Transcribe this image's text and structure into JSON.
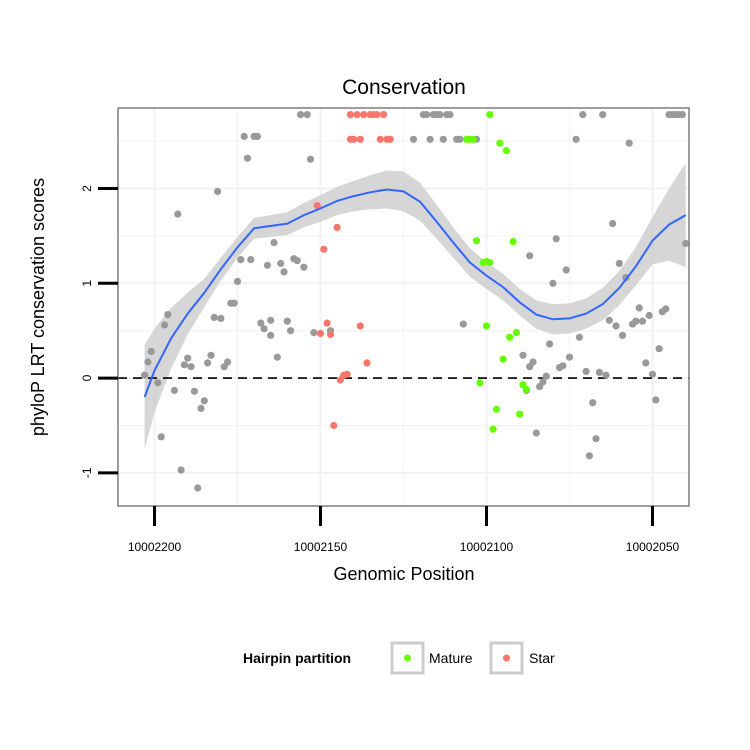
{
  "chart_data": {
    "type": "scatter",
    "title": "Conservation",
    "xlabel": "Genomic Position",
    "ylabel": "phyloP LRT conservation scores",
    "x_reversed": true,
    "xlim": [
      10002211,
      10002039
    ],
    "ylim": [
      -1.35,
      2.85
    ],
    "x_ticks": [
      10002200,
      10002150,
      10002100,
      10002050
    ],
    "x_tick_labels": [
      "10002200",
      "10002150",
      "10002100",
      "10002050"
    ],
    "y_ticks": [
      -1,
      0,
      1,
      2
    ],
    "y_tick_labels": [
      "-1",
      "0",
      "1",
      "2"
    ],
    "reference_line": {
      "y": 0,
      "style": "dashed",
      "color": "#000000"
    },
    "legend": {
      "title": "Hairpin partition",
      "position": "bottom",
      "entries": [
        {
          "label": "Mature",
          "color": "#66ff00"
        },
        {
          "label": "Star",
          "color": "#f8766d"
        }
      ]
    },
    "colors": {
      "other": "#999999",
      "mature": "#66ff00",
      "star": "#f8766d",
      "smooth": "#3366ff",
      "band": "#cccccc",
      "panel_border": "#7f7f7f",
      "grid": "#f2f2f2"
    },
    "series": [
      {
        "group": "other",
        "points": [
          [
            10002203,
            0.03
          ],
          [
            10002202,
            0.17
          ],
          [
            10002201,
            0.28
          ],
          [
            10002199,
            -0.05
          ],
          [
            10002198,
            -0.62
          ],
          [
            10002197,
            0.56
          ],
          [
            10002196,
            0.67
          ],
          [
            10002194,
            -0.13
          ],
          [
            10002193,
            1.73
          ],
          [
            10002192,
            -0.97
          ],
          [
            10002191,
            0.14
          ],
          [
            10002190,
            0.21
          ],
          [
            10002189,
            0.12
          ],
          [
            10002188,
            -0.14
          ],
          [
            10002187,
            -1.16
          ],
          [
            10002186,
            -0.32
          ],
          [
            10002185,
            -0.24
          ],
          [
            10002184,
            0.16
          ],
          [
            10002183,
            0.24
          ],
          [
            10002182,
            0.64
          ],
          [
            10002181,
            1.97
          ],
          [
            10002180,
            0.63
          ],
          [
            10002179,
            0.12
          ],
          [
            10002178,
            0.17
          ],
          [
            10002177,
            0.79
          ],
          [
            10002176,
            0.79
          ],
          [
            10002175,
            1.02
          ],
          [
            10002174,
            1.25
          ],
          [
            10002173,
            2.55
          ],
          [
            10002172,
            2.32
          ],
          [
            10002171,
            1.25
          ],
          [
            10002170,
            2.55
          ],
          [
            10002169,
            2.55
          ],
          [
            10002168,
            0.58
          ],
          [
            10002167,
            0.52
          ],
          [
            10002166,
            1.19
          ],
          [
            10002165,
            0.45
          ],
          [
            10002165,
            0.61
          ],
          [
            10002164,
            1.43
          ],
          [
            10002163,
            0.22
          ],
          [
            10002162,
            1.21
          ],
          [
            10002161,
            1.12
          ],
          [
            10002160,
            0.6
          ],
          [
            10002159,
            0.5
          ],
          [
            10002158,
            1.26
          ],
          [
            10002157,
            1.24
          ],
          [
            10002156,
            2.78
          ],
          [
            10002155,
            1.17
          ],
          [
            10002154,
            2.78
          ],
          [
            10002153,
            2.31
          ],
          [
            10002152,
            0.48
          ],
          [
            10002147,
            0.5
          ],
          [
            10002122,
            2.52
          ],
          [
            10002119,
            2.78
          ],
          [
            10002118,
            2.78
          ],
          [
            10002117,
            2.52
          ],
          [
            10002116,
            2.78
          ],
          [
            10002115,
            2.78
          ],
          [
            10002114,
            2.78
          ],
          [
            10002113,
            2.52
          ],
          [
            10002112,
            2.78
          ],
          [
            10002111,
            2.78
          ],
          [
            10002109,
            2.52
          ],
          [
            10002108,
            2.52
          ],
          [
            10002107,
            0.57
          ],
          [
            10002103,
            2.52
          ],
          [
            10002089,
            0.24
          ],
          [
            10002088,
            -0.13
          ],
          [
            10002087,
            1.29
          ],
          [
            10002087,
            0.12
          ],
          [
            10002086,
            0.17
          ],
          [
            10002085,
            -0.58
          ],
          [
            10002084,
            -0.09
          ],
          [
            10002083,
            -0.04
          ],
          [
            10002082,
            0.02
          ],
          [
            10002081,
            0.36
          ],
          [
            10002080,
            1.0
          ],
          [
            10002079,
            1.47
          ],
          [
            10002078,
            0.11
          ],
          [
            10002077,
            0.13
          ],
          [
            10002076,
            1.14
          ],
          [
            10002075,
            0.22
          ],
          [
            10002073,
            2.52
          ],
          [
            10002072,
            0.43
          ],
          [
            10002071,
            2.78
          ],
          [
            10002070,
            0.07
          ],
          [
            10002069,
            -0.82
          ],
          [
            10002068,
            -0.26
          ],
          [
            10002067,
            -0.64
          ],
          [
            10002066,
            0.06
          ],
          [
            10002065,
            2.78
          ],
          [
            10002064,
            0.03
          ],
          [
            10002063,
            0.61
          ],
          [
            10002062,
            1.63
          ],
          [
            10002061,
            0.55
          ],
          [
            10002060,
            1.21
          ],
          [
            10002059,
            0.45
          ],
          [
            10002058,
            1.06
          ],
          [
            10002057,
            2.48
          ],
          [
            10002056,
            0.57
          ],
          [
            10002055,
            0.6
          ],
          [
            10002054,
            0.74
          ],
          [
            10002053,
            0.6
          ],
          [
            10002052,
            0.16
          ],
          [
            10002051,
            0.66
          ],
          [
            10002050,
            0.04
          ],
          [
            10002049,
            -0.23
          ],
          [
            10002048,
            0.31
          ],
          [
            10002047,
            0.7
          ],
          [
            10002046,
            0.73
          ],
          [
            10002045,
            2.78
          ],
          [
            10002044,
            2.78
          ],
          [
            10002043,
            2.78
          ],
          [
            10002042,
            2.78
          ],
          [
            10002041,
            2.78
          ],
          [
            10002040,
            1.42
          ]
        ]
      },
      {
        "name": "Mature",
        "group": "mature",
        "points": [
          [
            10002106,
            2.52
          ],
          [
            10002105,
            2.52
          ],
          [
            10002104,
            2.52
          ],
          [
            10002103,
            1.45
          ],
          [
            10002102,
            -0.05
          ],
          [
            10002101,
            1.22
          ],
          [
            10002100,
            1.23
          ],
          [
            10002099,
            2.78
          ],
          [
            10002099,
            1.22
          ],
          [
            10002098,
            -0.54
          ],
          [
            10002097,
            -0.33
          ],
          [
            10002096,
            2.48
          ],
          [
            10002095,
            0.2
          ],
          [
            10002094,
            2.4
          ],
          [
            10002093,
            0.43
          ],
          [
            10002092,
            1.44
          ],
          [
            10002091,
            0.48
          ],
          [
            10002090,
            -0.38
          ],
          [
            10002089,
            -0.07
          ],
          [
            10002088,
            -0.12
          ],
          [
            10002100,
            0.55
          ]
        ]
      },
      {
        "name": "Star",
        "group": "star",
        "points": [
          [
            10002151,
            1.82
          ],
          [
            10002150,
            0.47
          ],
          [
            10002149,
            1.36
          ],
          [
            10002148,
            0.58
          ],
          [
            10002147,
            0.46
          ],
          [
            10002146,
            -0.5
          ],
          [
            10002145,
            1.59
          ],
          [
            10002144,
            -0.02
          ],
          [
            10002143,
            0.03
          ],
          [
            10002142,
            0.04
          ],
          [
            10002141,
            2.78
          ],
          [
            10002141,
            2.52
          ],
          [
            10002140,
            2.52
          ],
          [
            10002139,
            2.78
          ],
          [
            10002138,
            2.52
          ],
          [
            10002138,
            0.55
          ],
          [
            10002137,
            2.78
          ],
          [
            10002136,
            0.16
          ],
          [
            10002135,
            2.78
          ],
          [
            10002134,
            2.78
          ],
          [
            10002133,
            2.78
          ],
          [
            10002132,
            2.52
          ],
          [
            10002131,
            2.78
          ],
          [
            10002130,
            2.52
          ],
          [
            10002129,
            2.52
          ]
        ]
      }
    ],
    "smooth": [
      [
        10002203,
        -0.2
      ],
      [
        10002200,
        0.08
      ],
      [
        10002195,
        0.42
      ],
      [
        10002190,
        0.68
      ],
      [
        10002185,
        0.9
      ],
      [
        10002180,
        1.15
      ],
      [
        10002175,
        1.38
      ],
      [
        10002170,
        1.58
      ],
      [
        10002160,
        1.63
      ],
      [
        10002155,
        1.72
      ],
      [
        10002150,
        1.79
      ],
      [
        10002145,
        1.87
      ],
      [
        10002140,
        1.92
      ],
      [
        10002135,
        1.96
      ],
      [
        10002130,
        1.99
      ],
      [
        10002125,
        1.97
      ],
      [
        10002120,
        1.86
      ],
      [
        10002115,
        1.65
      ],
      [
        10002110,
        1.43
      ],
      [
        10002105,
        1.22
      ],
      [
        10002100,
        1.08
      ],
      [
        10002095,
        0.96
      ],
      [
        10002090,
        0.8
      ],
      [
        10002085,
        0.67
      ],
      [
        10002080,
        0.62
      ],
      [
        10002075,
        0.63
      ],
      [
        10002070,
        0.68
      ],
      [
        10002065,
        0.78
      ],
      [
        10002060,
        0.95
      ],
      [
        10002055,
        1.18
      ],
      [
        10002050,
        1.45
      ],
      [
        10002045,
        1.62
      ],
      [
        10002040,
        1.72
      ]
    ],
    "band_halfwidth": [
      0.55,
      0.44,
      0.32,
      0.22,
      0.15,
      0.12,
      0.11,
      0.11,
      0.12,
      0.13,
      0.14,
      0.15,
      0.16,
      0.18,
      0.2,
      0.21,
      0.2,
      0.18,
      0.16,
      0.15,
      0.14,
      0.14,
      0.14,
      0.15,
      0.16,
      0.16,
      0.16,
      0.17,
      0.18,
      0.2,
      0.25,
      0.38,
      0.55
    ]
  }
}
